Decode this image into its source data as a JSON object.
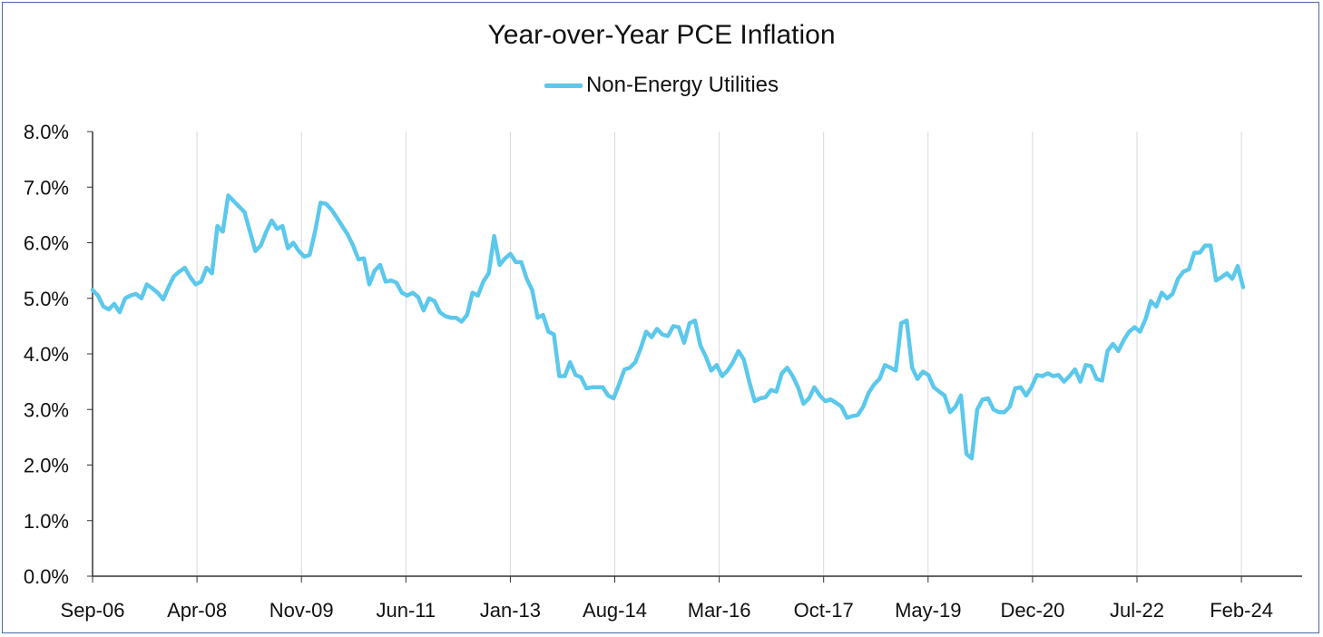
{
  "chart_data": {
    "type": "line",
    "title": "Year-over-Year PCE Inflation",
    "xlabel": "",
    "ylabel": "",
    "x_tick_labels": [
      "Sep-06",
      "Apr-08",
      "Nov-09",
      "Jun-11",
      "Jan-13",
      "Aug-14",
      "Mar-16",
      "Oct-17",
      "May-19",
      "Dec-20",
      "Jul-22",
      "Feb-24"
    ],
    "y_tick_labels": [
      "0.0%",
      "1.0%",
      "2.0%",
      "3.0%",
      "4.0%",
      "5.0%",
      "6.0%",
      "7.0%",
      "8.0%"
    ],
    "ylim": [
      0,
      8
    ],
    "grid": "vertical",
    "legend_position": "top",
    "x_start": "Sep-06",
    "x_end": "Mar-24",
    "series": [
      {
        "name": "Non-Energy Utilities",
        "color": "#5bc8ec",
        "values": [
          5.15,
          5.05,
          4.85,
          4.8,
          4.9,
          4.75,
          5.0,
          5.05,
          5.08,
          5.0,
          5.25,
          5.18,
          5.1,
          4.98,
          5.2,
          5.4,
          5.48,
          5.55,
          5.38,
          5.25,
          5.3,
          5.55,
          5.45,
          6.3,
          6.2,
          6.85,
          6.75,
          6.65,
          6.55,
          6.2,
          5.85,
          5.95,
          6.2,
          6.4,
          6.25,
          6.3,
          5.9,
          6.0,
          5.85,
          5.75,
          5.78,
          6.2,
          6.72,
          6.7,
          6.6,
          6.45,
          6.3,
          6.15,
          5.95,
          5.7,
          5.72,
          5.25,
          5.5,
          5.6,
          5.3,
          5.32,
          5.28,
          5.1,
          5.05,
          5.1,
          5.02,
          4.78,
          5.0,
          4.95,
          4.75,
          4.68,
          4.65,
          4.65,
          4.58,
          4.7,
          5.1,
          5.05,
          5.3,
          5.45,
          6.12,
          5.6,
          5.72,
          5.8,
          5.65,
          5.65,
          5.35,
          5.15,
          4.65,
          4.7,
          4.4,
          4.35,
          3.6,
          3.6,
          3.85,
          3.62,
          3.58,
          3.38,
          3.4,
          3.4,
          3.4,
          3.25,
          3.2,
          3.45,
          3.72,
          3.75,
          3.85,
          4.1,
          4.4,
          4.3,
          4.45,
          4.35,
          4.32,
          4.5,
          4.48,
          4.2,
          4.55,
          4.6,
          4.15,
          3.95,
          3.7,
          3.8,
          3.6,
          3.7,
          3.85,
          4.05,
          3.9,
          3.5,
          3.15,
          3.2,
          3.22,
          3.35,
          3.32,
          3.65,
          3.75,
          3.6,
          3.4,
          3.1,
          3.2,
          3.4,
          3.25,
          3.15,
          3.18,
          3.12,
          3.05,
          2.85,
          2.88,
          2.9,
          3.05,
          3.3,
          3.45,
          3.55,
          3.8,
          3.75,
          3.7,
          4.55,
          4.6,
          3.75,
          3.55,
          3.68,
          3.62,
          3.4,
          3.32,
          3.25,
          2.95,
          3.05,
          3.25,
          2.2,
          2.12,
          3.0,
          3.18,
          3.2,
          3.0,
          2.95,
          2.95,
          3.05,
          3.38,
          3.4,
          3.25,
          3.4,
          3.62,
          3.6,
          3.65,
          3.6,
          3.62,
          3.5,
          3.6,
          3.72,
          3.5,
          3.8,
          3.78,
          3.55,
          3.52,
          4.05,
          4.18,
          4.05,
          4.25,
          4.4,
          4.48,
          4.4,
          4.62,
          4.95,
          4.85,
          5.1,
          5.0,
          5.08,
          5.35,
          5.48,
          5.52,
          5.82,
          5.82,
          5.95,
          5.95,
          5.32,
          5.38,
          5.45,
          5.35,
          5.58,
          5.2
        ]
      }
    ]
  }
}
